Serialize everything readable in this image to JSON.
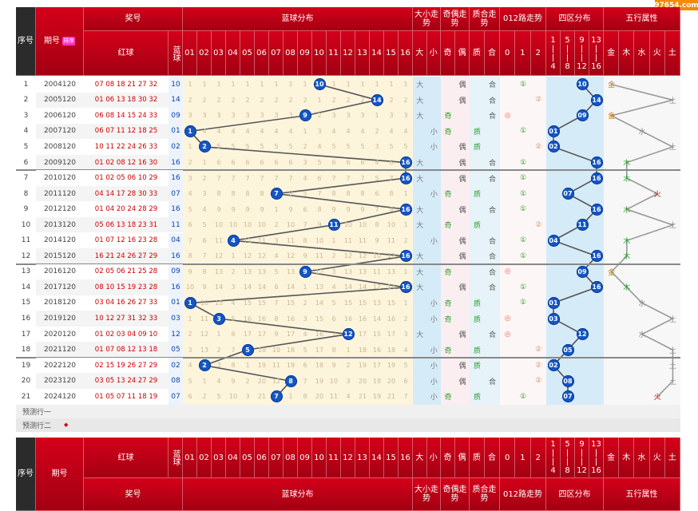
{
  "watermark": "97654.com",
  "header_top": {
    "xuhao": "序号",
    "qihao": "期号",
    "sort_label": "排序",
    "jianghao": "奖号",
    "hongqiu": "红球",
    "lanqiu": "蓝球",
    "blue_dist": "蓝球分布",
    "daxiao": "大小走势",
    "jiou": "奇偶走势",
    "zhihe": "质合走势",
    "lu012": "012路走势",
    "siqu": "四区分布",
    "wuxing": "五行属性"
  },
  "col_numbers": [
    "01",
    "02",
    "03",
    "04",
    "05",
    "06",
    "07",
    "08",
    "09",
    "10",
    "11",
    "12",
    "13",
    "14",
    "15",
    "16"
  ],
  "daxiao_labels": [
    "大",
    "小"
  ],
  "jiou_labels": [
    "奇",
    "偶"
  ],
  "zhihe_labels": [
    "质",
    "合"
  ],
  "lu_labels": [
    "0",
    "1",
    "2"
  ],
  "siqu_labels": [
    {
      "top": "1",
      "bot": "4"
    },
    {
      "top": "5",
      "bot": "8"
    },
    {
      "top": "9",
      "bot": "12"
    },
    {
      "top": "13",
      "bot": "16"
    }
  ],
  "wuxing_labels": [
    "金",
    "木",
    "水",
    "火",
    "土"
  ],
  "rows": [
    {
      "seq": "1",
      "period": "2004120",
      "red": "07 08 18 21 27 32",
      "blue": "10",
      "dx": "大",
      "jo": "偶",
      "zh": "合",
      "lu": "①",
      "lu_col": 1,
      "siqu": 3,
      "wx": "金",
      "wx_col": 0,
      "miss": [
        "1",
        "1",
        "1",
        "1",
        "1",
        "1",
        "1",
        "1",
        "1",
        "",
        "1",
        "1",
        "1",
        "1",
        "1",
        "1"
      ]
    },
    {
      "seq": "2",
      "period": "2005120",
      "red": "01 06 13 18 30 32",
      "blue": "14",
      "dx": "大",
      "jo": "偶",
      "zh": "合",
      "lu": "②",
      "lu_col": 2,
      "siqu": 4,
      "wx": "土",
      "wx_col": 4,
      "miss": [
        "2",
        "2",
        "2",
        "2",
        "2",
        "2",
        "2",
        "2",
        "2",
        "1",
        "2",
        "2",
        "2",
        "",
        "2",
        "2"
      ]
    },
    {
      "seq": "3",
      "period": "2006120",
      "red": "06 08 14 15 24 33",
      "blue": "09",
      "dx": "大",
      "jo": "奇",
      "zh": "合",
      "lu": "◎",
      "lu_col": 0,
      "siqu": 3,
      "wx": "金",
      "wx_col": 0,
      "miss": [
        "3",
        "3",
        "3",
        "3",
        "3",
        "3",
        "3",
        "3",
        "",
        "2",
        "3",
        "3",
        "3",
        "1",
        "3",
        "3"
      ]
    },
    {
      "seq": "4",
      "period": "2007120",
      "red": "06 07 11 12 18 25",
      "blue": "01",
      "dx": "小",
      "jo": "奇",
      "zh": "质",
      "lu": "①",
      "lu_col": 1,
      "siqu": 1,
      "wx": "水",
      "wx_col": 2,
      "miss": [
        "",
        "4",
        "4",
        "4",
        "4",
        "4",
        "4",
        "4",
        "1",
        "3",
        "4",
        "4",
        "4",
        "2",
        "4",
        "4"
      ]
    },
    {
      "seq": "5",
      "period": "2008120",
      "red": "10 11 22 24 26 33",
      "blue": "02",
      "dx": "小",
      "jo": "偶",
      "zh": "质",
      "lu": "②",
      "lu_col": 2,
      "siqu": 1,
      "wx": "土",
      "wx_col": 4,
      "miss": [
        "1",
        "",
        "5",
        "5",
        "5",
        "5",
        "5",
        "5",
        "2",
        "4",
        "5",
        "5",
        "5",
        "3",
        "5",
        "5"
      ]
    },
    {
      "seq": "6",
      "period": "2009120",
      "red": "01 02 08 12 16 30",
      "blue": "16",
      "dx": "大",
      "jo": "偶",
      "zh": "合",
      "lu": "①",
      "lu_col": 1,
      "siqu": 4,
      "wx": "木",
      "wx_col": 1,
      "miss": [
        "2",
        "1",
        "6",
        "6",
        "6",
        "6",
        "6",
        "6",
        "3",
        "5",
        "6",
        "6",
        "6",
        "4",
        "6",
        ""
      ]
    },
    {
      "seq": "7",
      "period": "2010120",
      "red": "01 02 05 06 10 29",
      "blue": "16",
      "dx": "大",
      "jo": "偶",
      "zh": "合",
      "lu": "①",
      "lu_col": 1,
      "siqu": 4,
      "wx": "木",
      "wx_col": 1,
      "miss": [
        "3",
        "2",
        "7",
        "7",
        "7",
        "7",
        "7",
        "7",
        "4",
        "6",
        "7",
        "7",
        "7",
        "5",
        "7",
        ""
      ]
    },
    {
      "seq": "8",
      "period": "2011120",
      "red": "04 14 17 28 30 33",
      "blue": "07",
      "dx": "小",
      "jo": "奇",
      "zh": "质",
      "lu": "①",
      "lu_col": 1,
      "siqu": 2,
      "wx": "火",
      "wx_col": 3,
      "miss": [
        "4",
        "3",
        "8",
        "8",
        "8",
        "8",
        "",
        "8",
        "5",
        "7",
        "8",
        "8",
        "8",
        "6",
        "8",
        "1"
      ]
    },
    {
      "seq": "9",
      "period": "2012120",
      "red": "01 04 20 24 28 29",
      "blue": "16",
      "dx": "大",
      "jo": "偶",
      "zh": "合",
      "lu": "①",
      "lu_col": 1,
      "siqu": 4,
      "wx": "木",
      "wx_col": 1,
      "miss": [
        "5",
        "4",
        "9",
        "9",
        "9",
        "9",
        "1",
        "9",
        "6",
        "8",
        "9",
        "9",
        "9",
        "7",
        "9",
        ""
      ]
    },
    {
      "seq": "10",
      "period": "2013120",
      "red": "05 06 13 18 23 31",
      "blue": "11",
      "dx": "大",
      "jo": "奇",
      "zh": "质",
      "lu": "②",
      "lu_col": 2,
      "siqu": 3,
      "wx": "土",
      "wx_col": 4,
      "miss": [
        "6",
        "5",
        "10",
        "10",
        "10",
        "10",
        "2",
        "10",
        "7",
        "9",
        "",
        "10",
        "10",
        "8",
        "10",
        "1"
      ]
    },
    {
      "seq": "11",
      "period": "2014120",
      "red": "01 07 12 16 23 28",
      "blue": "04",
      "dx": "小",
      "jo": "偶",
      "zh": "合",
      "lu": "①",
      "lu_col": 1,
      "siqu": 1,
      "wx": "木",
      "wx_col": 1,
      "miss": [
        "7",
        "6",
        "11",
        "",
        "11",
        "11",
        "3",
        "11",
        "8",
        "10",
        "1",
        "11",
        "11",
        "9",
        "11",
        "2"
      ]
    },
    {
      "seq": "12",
      "period": "2015120",
      "red": "16 21 24 26 27 29",
      "blue": "16",
      "dx": "大",
      "jo": "偶",
      "zh": "合",
      "lu": "①",
      "lu_col": 1,
      "siqu": 4,
      "wx": "木",
      "wx_col": 1,
      "miss": [
        "8",
        "7",
        "12",
        "1",
        "12",
        "12",
        "4",
        "12",
        "9",
        "11",
        "2",
        "12",
        "12",
        "10",
        "12",
        ""
      ]
    },
    {
      "seq": "13",
      "period": "2016120",
      "red": "02 05 06 21 25 28",
      "blue": "09",
      "dx": "大",
      "jo": "奇",
      "zh": "合",
      "lu": "◎",
      "lu_col": 0,
      "siqu": 3,
      "wx": "金",
      "wx_col": 0,
      "miss": [
        "9",
        "8",
        "13",
        "2",
        "13",
        "13",
        "5",
        "13",
        "",
        "12",
        "3",
        "13",
        "13",
        "11",
        "13",
        "1"
      ]
    },
    {
      "seq": "14",
      "period": "2017120",
      "red": "08 10 15 19 23 28",
      "blue": "16",
      "dx": "大",
      "jo": "偶",
      "zh": "合",
      "lu": "①",
      "lu_col": 1,
      "siqu": 4,
      "wx": "木",
      "wx_col": 1,
      "miss": [
        "10",
        "9",
        "14",
        "3",
        "14",
        "14",
        "6",
        "14",
        "1",
        "13",
        "4",
        "14",
        "14",
        "12",
        "14",
        ""
      ]
    },
    {
      "seq": "15",
      "period": "2018120",
      "red": "03 04 16 26 27 33",
      "blue": "01",
      "dx": "小",
      "jo": "奇",
      "zh": "质",
      "lu": "①",
      "lu_col": 1,
      "siqu": 1,
      "wx": "水",
      "wx_col": 2,
      "miss": [
        "",
        "10",
        "15",
        "4",
        "15",
        "15",
        "7",
        "15",
        "2",
        "14",
        "5",
        "15",
        "15",
        "13",
        "15",
        "1"
      ]
    },
    {
      "seq": "16",
      "period": "2019120",
      "red": "10 12 27 31 32 33",
      "blue": "03",
      "dx": "小",
      "jo": "奇",
      "zh": "质",
      "lu": "◎",
      "lu_col": 0,
      "siqu": 1,
      "wx": "土",
      "wx_col": 4,
      "miss": [
        "1",
        "11",
        "",
        "5",
        "16",
        "16",
        "8",
        "16",
        "3",
        "15",
        "6",
        "16",
        "16",
        "14",
        "16",
        "2"
      ]
    },
    {
      "seq": "17",
      "period": "2020120",
      "red": "01 02 03 04 09 10",
      "blue": "12",
      "dx": "大",
      "jo": "偶",
      "zh": "合",
      "lu": "◎",
      "lu_col": 0,
      "siqu": 3,
      "wx": "水",
      "wx_col": 2,
      "miss": [
        "2",
        "12",
        "1",
        "6",
        "17",
        "17",
        "9",
        "17",
        "4",
        "16",
        "7",
        "",
        "17",
        "15",
        "17",
        "3"
      ]
    },
    {
      "seq": "18",
      "period": "2021120",
      "red": "01 07 08 12 13 18",
      "blue": "05",
      "dx": "小",
      "jo": "奇",
      "zh": "质",
      "lu": "②",
      "lu_col": 2,
      "siqu": 2,
      "wx": "土",
      "wx_col": 4,
      "miss": [
        "3",
        "13",
        "2",
        "7",
        "",
        "18",
        "10",
        "18",
        "5",
        "17",
        "8",
        "1",
        "18",
        "16",
        "18",
        "4"
      ]
    },
    {
      "seq": "19",
      "period": "2022120",
      "red": "02 15 19 26 27 29",
      "blue": "02",
      "dx": "小",
      "jo": "偶",
      "zh": "质",
      "lu": "②",
      "lu_col": 2,
      "siqu": 1,
      "wx": "土",
      "wx_col": 4,
      "miss": [
        "4",
        "",
        "3",
        "8",
        "1",
        "19",
        "11",
        "19",
        "6",
        "18",
        "9",
        "2",
        "19",
        "17",
        "19",
        "5"
      ]
    },
    {
      "seq": "20",
      "period": "2023120",
      "red": "03 05 13 24 27 29",
      "blue": "08",
      "dx": "小",
      "jo": "偶",
      "zh": "合",
      "lu": "②",
      "lu_col": 2,
      "siqu": 2,
      "wx": "土",
      "wx_col": 4,
      "miss": [
        "5",
        "1",
        "4",
        "9",
        "2",
        "20",
        "12",
        "",
        "7",
        "19",
        "10",
        "3",
        "20",
        "18",
        "20",
        "6"
      ]
    },
    {
      "seq": "21",
      "period": "2024120",
      "red": "01 05 07 11 18 19",
      "blue": "07",
      "dx": "小",
      "jo": "奇",
      "zh": "质",
      "lu": "①",
      "lu_col": 1,
      "siqu": 2,
      "wx": "火",
      "wx_col": 3,
      "miss": [
        "6",
        "2",
        "5",
        "10",
        "3",
        "21",
        "",
        "1",
        "8",
        "20",
        "11",
        "4",
        "21",
        "19",
        "21",
        "7"
      ]
    }
  ],
  "predict_rows": [
    "预测行一",
    "预测行二"
  ]
}
